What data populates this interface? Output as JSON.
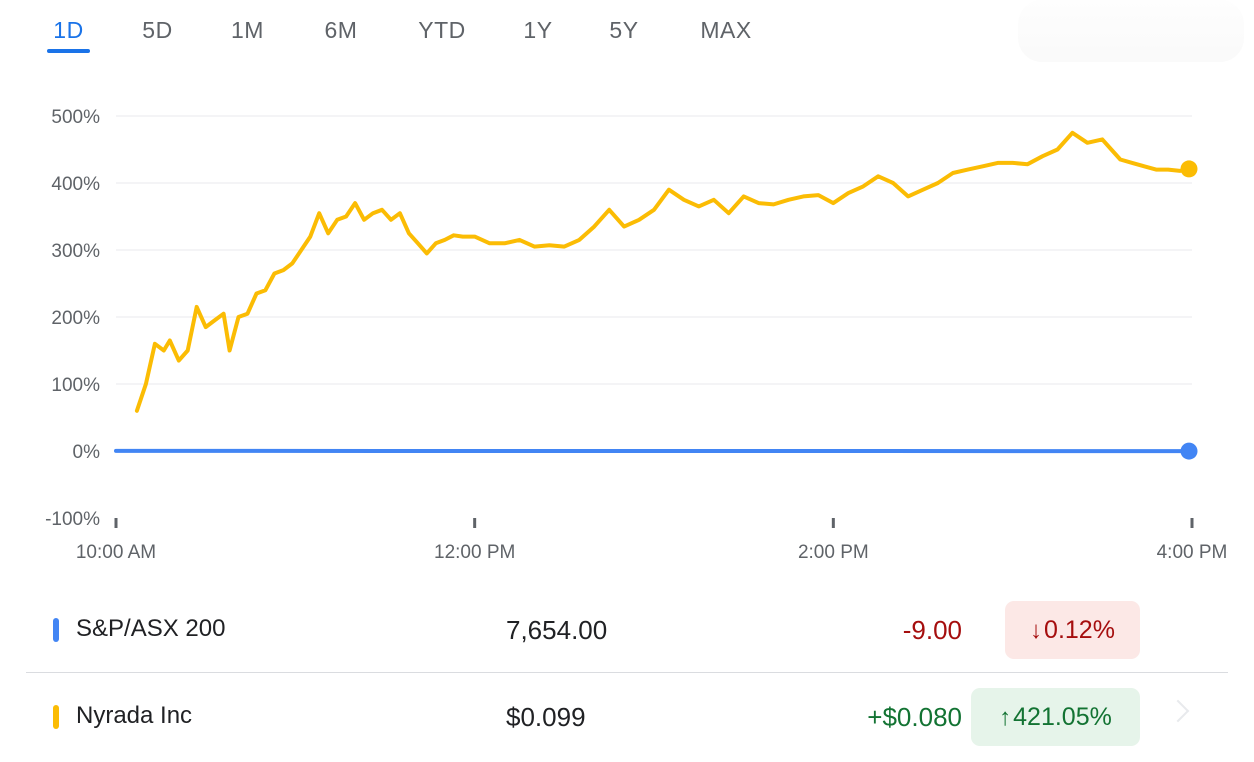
{
  "tabs": [
    {
      "label": "1D",
      "active": true
    },
    {
      "label": "5D"
    },
    {
      "label": "1M"
    },
    {
      "label": "6M"
    },
    {
      "label": "YTD"
    },
    {
      "label": "1Y"
    },
    {
      "label": "5Y"
    },
    {
      "label": "MAX"
    }
  ],
  "chart_data": {
    "type": "line",
    "x_ticks": [
      "10:00 AM",
      "12:00 PM",
      "2:00 PM",
      "4:00 PM"
    ],
    "y_ticks": [
      "500%",
      "400%",
      "300%",
      "200%",
      "100%",
      "0%",
      "-100%"
    ],
    "ylim": [
      -100,
      500
    ],
    "grid": true,
    "series": [
      {
        "name": "Nyrada Inc",
        "color": "#fbbc04",
        "x": [
          "10:07 AM",
          "10:10 AM",
          "10:13 AM",
          "10:16 AM",
          "10:18 AM",
          "10:21 AM",
          "10:24 AM",
          "10:27 AM",
          "10:30 AM",
          "10:33 AM",
          "10:36 AM",
          "10:38 AM",
          "10:41 AM",
          "10:44 AM",
          "10:47 AM",
          "10:50 AM",
          "10:53 AM",
          "10:56 AM",
          "10:59 AM",
          "11:02 AM",
          "11:05 AM",
          "11:08 AM",
          "11:11 AM",
          "11:14 AM",
          "11:17 AM",
          "11:20 AM",
          "11:23 AM",
          "11:26 AM",
          "11:29 AM",
          "11:32 AM",
          "11:35 AM",
          "11:38 AM",
          "11:41 AM",
          "11:44 AM",
          "11:47 AM",
          "11:50 AM",
          "11:53 AM",
          "11:56 AM",
          "12:00 PM",
          "12:05 PM",
          "12:10 PM",
          "12:15 PM",
          "12:20 PM",
          "12:25 PM",
          "12:30 PM",
          "12:35 PM",
          "12:40 PM",
          "12:45 PM",
          "12:50 PM",
          "12:55 PM",
          "1:00 PM",
          "1:05 PM",
          "1:10 PM",
          "1:15 PM",
          "1:20 PM",
          "1:25 PM",
          "1:30 PM",
          "1:35 PM",
          "1:40 PM",
          "1:45 PM",
          "1:50 PM",
          "1:55 PM",
          "2:00 PM",
          "2:05 PM",
          "2:10 PM",
          "2:15 PM",
          "2:20 PM",
          "2:25 PM",
          "2:30 PM",
          "2:35 PM",
          "2:40 PM",
          "2:45 PM",
          "2:50 PM",
          "2:55 PM",
          "3:00 PM",
          "3:05 PM",
          "3:10 PM",
          "3:15 PM",
          "3:20 PM",
          "3:25 PM",
          "3:30 PM",
          "3:33 PM",
          "3:36 PM",
          "3:40 PM",
          "3:44 PM",
          "3:48 PM",
          "3:52 PM",
          "3:56 PM",
          "4:00 PM"
        ],
        "values": [
          60,
          100,
          160,
          150,
          165,
          135,
          150,
          215,
          185,
          195,
          205,
          150,
          200,
          205,
          235,
          240,
          265,
          270,
          280,
          300,
          320,
          355,
          325,
          345,
          350,
          370,
          345,
          355,
          360,
          345,
          355,
          325,
          310,
          295,
          310,
          315,
          322,
          320,
          320,
          310,
          310,
          315,
          305,
          307,
          305,
          315,
          335,
          360,
          335,
          345,
          360,
          390,
          375,
          365,
          375,
          355,
          380,
          370,
          368,
          375,
          380,
          382,
          370,
          385,
          395,
          410,
          400,
          380,
          390,
          400,
          415,
          420,
          425,
          430,
          430,
          428,
          440,
          450,
          475,
          460,
          465,
          450,
          435,
          430,
          425,
          420,
          420,
          418,
          421
        ]
      },
      {
        "name": "S&P/ASX 200",
        "color": "#4285f4",
        "x": [
          "10:00 AM",
          "4:00 PM"
        ],
        "values": [
          0.2,
          -0.12
        ]
      }
    ]
  },
  "rows": [
    {
      "name": "S&P/ASX 200",
      "color": "#4285f4",
      "price": "7,654.00",
      "change": "-9.00",
      "change_color": "#a50e0e",
      "pill_arrow": "↓",
      "pill_text": "0.12%",
      "pill_bg": "#fce8e6",
      "pill_color": "#a50e0e"
    },
    {
      "name": "Nyrada Inc",
      "color": "#fbbc04",
      "price": "$0.099",
      "change": "+$0.080",
      "change_color": "#137333",
      "pill_arrow": "↑",
      "pill_text": "421.05%",
      "pill_bg": "#e6f4ea",
      "pill_color": "#137333"
    }
  ]
}
